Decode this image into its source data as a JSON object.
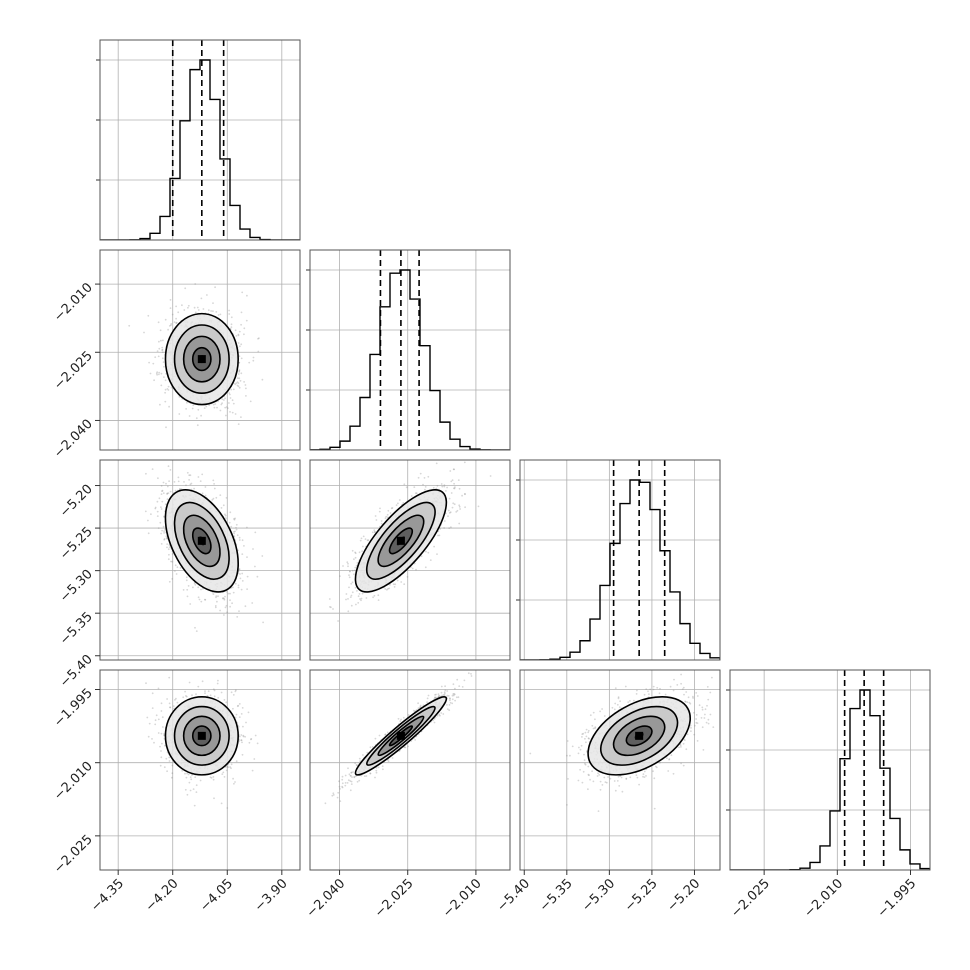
{
  "chart_data": {
    "type": "corner",
    "parameters": [
      {
        "mean": -4.12,
        "std": 0.05,
        "range": [
          -4.4,
          -3.85
        ],
        "ticks": [
          -4.35,
          -4.2,
          -4.05,
          -3.9
        ],
        "tick_labels": [
          "−4.35",
          "−4.20",
          "−4.05",
          "−3.90"
        ],
        "quantiles": [
          -4.2,
          -4.12,
          -4.06
        ]
      },
      {
        "mean": -2.0265,
        "std": 0.005,
        "range": [
          -2.0465,
          -2.0025
        ],
        "ticks": [
          -2.04,
          -2.025,
          -2.01
        ],
        "tick_labels": [
          "−2.040",
          "−2.025",
          "−2.010"
        ],
        "quantiles": [
          -2.031,
          -2.0265,
          -2.0225
        ]
      },
      {
        "mean": -5.265,
        "std": 0.03,
        "range": [
          -5.405,
          -5.17
        ],
        "ticks": [
          -5.4,
          -5.35,
          -5.3,
          -5.25,
          -5.2
        ],
        "tick_labels": [
          "−5.40",
          "−5.35",
          "−5.30",
          "−5.25",
          "−5.20"
        ],
        "quantiles": [
          -5.295,
          -5.265,
          -5.235
        ]
      },
      {
        "mean": -2.0045,
        "std": 0.004,
        "range": [
          -2.032,
          -1.991
        ],
        "ticks": [
          -2.025,
          -2.01,
          -1.995
        ],
        "tick_labels": [
          "−2.025",
          "−2.010",
          "−1.995"
        ],
        "quantiles": [
          -2.0085,
          -2.0045,
          -2.0005
        ]
      }
    ],
    "correlations": {
      "1-0": 0.0,
      "2-0": -0.45,
      "2-1": 0.75,
      "3-0": 0.0,
      "3-1": 0.95,
      "3-2": 0.45
    },
    "histogram_bins": 20,
    "contour_levels_sigma": [
      0.5,
      1.0,
      1.5,
      2.0
    ],
    "grid": true,
    "colors": {
      "ink": "#000000",
      "scatter": "#8c8c8c",
      "grid": "#b0b0b0",
      "frame": "#555555"
    }
  }
}
